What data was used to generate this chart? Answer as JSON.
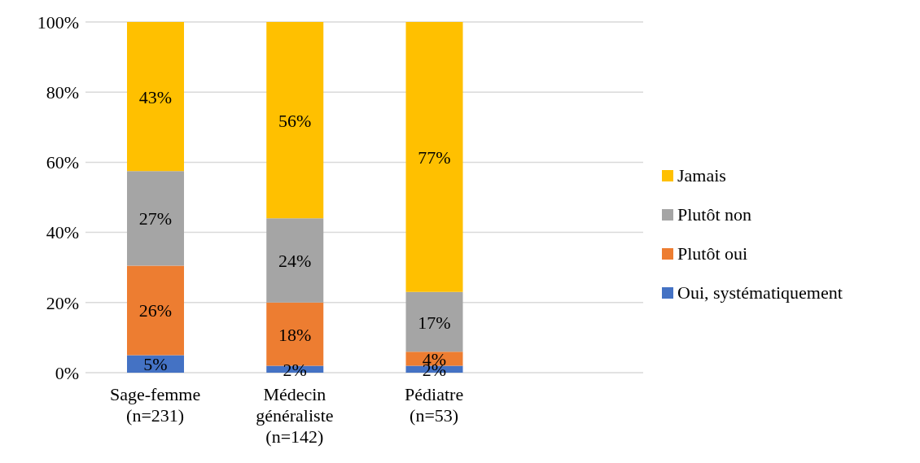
{
  "chart_data": {
    "type": "bar",
    "stacked": true,
    "categories": [
      "Sage-femme (n=231)",
      "Médecin généraliste (n=142)",
      "Pédiatre (n=53)"
    ],
    "series": [
      {
        "name": "Oui, systématiquement",
        "color": "#4472c4",
        "values": [
          5,
          2,
          2
        ],
        "value_labels": [
          "5%",
          "2%",
          "2%"
        ]
      },
      {
        "name": "Plutôt oui",
        "color": "#ed7d31",
        "values": [
          25.5,
          18,
          4
        ],
        "value_labels": [
          "26%",
          "18%",
          "4%"
        ]
      },
      {
        "name": "Plutôt non",
        "color": "#a5a5a5",
        "values": [
          27,
          24,
          17
        ],
        "value_labels": [
          "27%",
          "24%",
          "17%"
        ]
      },
      {
        "name": "Jamais",
        "color": "#ffc000",
        "values": [
          42.5,
          56,
          77
        ],
        "value_labels": [
          "43%",
          "56%",
          "77%"
        ]
      }
    ],
    "ylim": [
      0,
      100
    ],
    "yticks": [
      {
        "value": 0,
        "label": "0%"
      },
      {
        "value": 20,
        "label": "20%"
      },
      {
        "value": 40,
        "label": "40%"
      },
      {
        "value": 60,
        "label": "60%"
      },
      {
        "value": 80,
        "label": "80%"
      },
      {
        "value": 100,
        "label": "100%"
      }
    ],
    "grid": "y",
    "legend": "right"
  }
}
